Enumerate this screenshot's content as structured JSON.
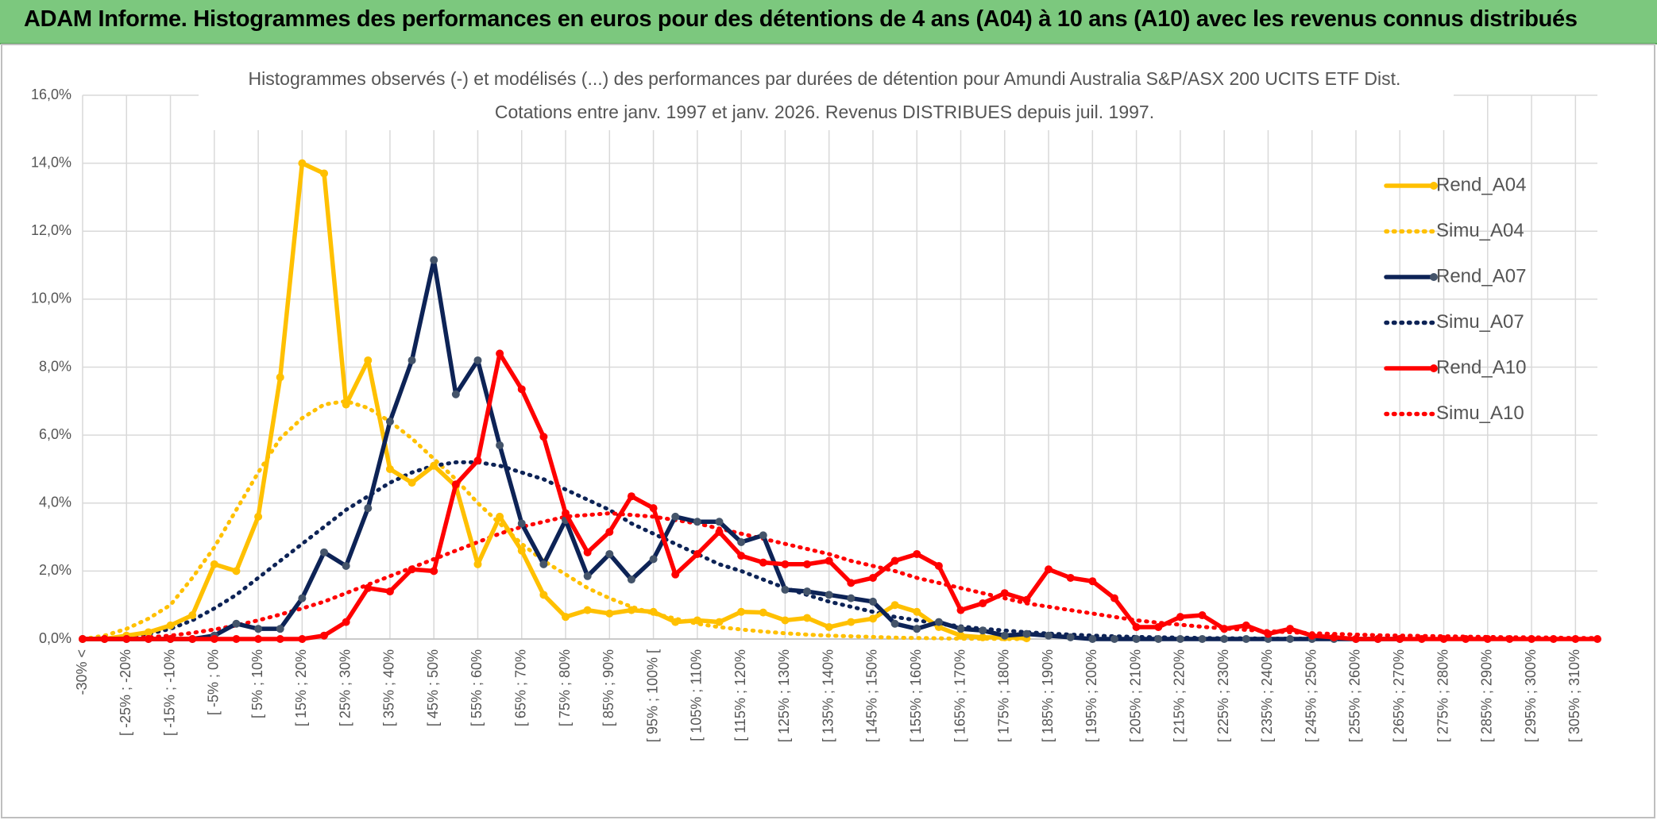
{
  "header": "ADAM Informe. Histogrammes des performances en euros pour des détentions de 4 ans (A04) à 10 ans (A10) avec les revenus connus distribués",
  "chart_data": {
    "type": "line",
    "title": "Histogrammes observés (-) et modélisés (...) des performances par durées de détention pour Amundi Australia S&P/ASX 200 UCITS ETF Dist.",
    "subtitle": "Cotations entre janv. 1997 et janv. 2026. Revenus DISTRIBUES depuis juil. 1997.",
    "categories": [
      "-30% <",
      null,
      "[ -25% ; -20%",
      null,
      "[ -15% ; -10%",
      null,
      "[ -5% ; 0%",
      null,
      "[ 5% ; 10%",
      null,
      "[ 15% ; 20%",
      null,
      "[ 25% ; 30%",
      null,
      "[ 35% ; 40%",
      null,
      "[ 45% ; 50%",
      null,
      "[ 55% ; 60%",
      null,
      "[ 65% ; 70%",
      null,
      "[ 75% ; 80%",
      null,
      "[ 85% ; 90%",
      null,
      "[ 95% ; 100% [",
      null,
      "[ 105% ; 110%",
      null,
      "[ 115% ; 120%",
      null,
      "[ 125% ; 130%",
      null,
      "[ 135% ; 140%",
      null,
      "[ 145% ; 150%",
      null,
      "[ 155% ; 160%",
      null,
      "[ 165% ; 170%",
      null,
      "[ 175% ; 180%",
      null,
      "[ 185% ; 190%",
      null,
      "[ 195% ; 200%",
      null,
      "[ 205% ; 210%",
      null,
      "[ 215% ; 220%",
      null,
      "[ 225% ; 230%",
      null,
      "[ 235% ; 240%",
      null,
      "[ 245% ; 250%",
      null,
      "[ 255% ; 260%",
      null,
      "[ 265% ; 270%",
      null,
      "[ 275% ; 280%",
      null,
      "[ 285% ; 290%",
      null,
      "[ 295% ; 300%",
      null,
      "[ 305% ; 310%",
      null
    ],
    "series": [
      {
        "name": "Rend_A04",
        "color": "#FFC000",
        "dash": "solid",
        "markers": true,
        "marker_color": "#FFC000",
        "values": [
          0,
          0,
          0.1,
          0.2,
          0.4,
          0.7,
          2.2,
          2.0,
          3.6,
          7.7,
          14.0,
          13.7,
          6.9,
          8.2,
          5.0,
          4.6,
          5.1,
          4.5,
          2.2,
          3.6,
          2.6,
          1.3,
          0.65,
          0.85,
          0.75,
          0.85,
          0.8,
          0.5,
          0.55,
          0.5,
          0.8,
          0.78,
          0.55,
          0.62,
          0.35,
          0.5,
          0.6,
          1.0,
          0.8,
          0.35,
          0.1,
          0.05,
          0.05,
          0.02,
          null,
          null,
          null,
          null,
          null,
          null,
          null,
          null,
          null,
          null,
          null,
          null,
          null,
          null,
          null,
          null,
          null,
          null,
          null,
          null,
          null,
          null,
          null,
          null,
          null,
          null
        ]
      },
      {
        "name": "Simu_A04",
        "color": "#FFC000",
        "dash": "dotted",
        "markers": false,
        "values": [
          0,
          0.1,
          0.3,
          0.6,
          1.0,
          1.8,
          2.7,
          3.8,
          4.9,
          5.9,
          6.5,
          6.9,
          7.0,
          6.8,
          6.4,
          5.9,
          5.3,
          4.7,
          4.0,
          3.4,
          2.8,
          2.3,
          1.9,
          1.5,
          1.2,
          0.95,
          0.75,
          0.6,
          0.45,
          0.35,
          0.28,
          0.22,
          0.17,
          0.13,
          0.1,
          0.08,
          0.06,
          0.04,
          0.03,
          0.02,
          0.01,
          0.01,
          0,
          0,
          null,
          null,
          null,
          null,
          null,
          null,
          null,
          null,
          null,
          null,
          null,
          null,
          null,
          null,
          null,
          null,
          null,
          null,
          null,
          null,
          null,
          null,
          null,
          null,
          null,
          null
        ]
      },
      {
        "name": "Rend_A07",
        "color": "#0D2356",
        "dash": "solid",
        "markers": true,
        "marker_color": "#44546A",
        "values": [
          0,
          0,
          0,
          0,
          0,
          0,
          0.1,
          0.45,
          0.3,
          0.3,
          1.2,
          2.55,
          2.15,
          3.85,
          6.4,
          8.2,
          11.15,
          7.2,
          8.2,
          5.7,
          3.4,
          2.2,
          3.5,
          1.85,
          2.5,
          1.75,
          2.35,
          3.6,
          3.45,
          3.45,
          2.85,
          3.05,
          1.45,
          1.4,
          1.3,
          1.2,
          1.1,
          0.45,
          0.3,
          0.5,
          0.3,
          0.25,
          0.1,
          0.15,
          0.1,
          0.05,
          0,
          0,
          0,
          0,
          0,
          0,
          0,
          0,
          0,
          0,
          0,
          0,
          0,
          0,
          0,
          null,
          null,
          null,
          null,
          null,
          null,
          null,
          null,
          null
        ]
      },
      {
        "name": "Simu_A07",
        "color": "#0D2356",
        "dash": "dotted",
        "markers": false,
        "values": [
          0,
          0.02,
          0.05,
          0.15,
          0.3,
          0.55,
          0.9,
          1.3,
          1.8,
          2.3,
          2.8,
          3.3,
          3.8,
          4.2,
          4.6,
          4.9,
          5.1,
          5.2,
          5.2,
          5.1,
          4.9,
          4.7,
          4.4,
          4.1,
          3.8,
          3.4,
          3.1,
          2.8,
          2.5,
          2.2,
          2.0,
          1.75,
          1.5,
          1.3,
          1.1,
          0.95,
          0.8,
          0.65,
          0.55,
          0.45,
          0.37,
          0.3,
          0.25,
          0.2,
          0.16,
          0.13,
          0.1,
          0.08,
          0.06,
          0.05,
          0.04,
          0.03,
          0.02,
          0.02,
          0.01,
          0.01,
          0.01,
          0.01,
          0,
          0,
          0,
          null,
          null,
          null,
          null,
          null,
          null,
          null,
          null,
          null
        ]
      },
      {
        "name": "Rend_A10",
        "color": "#FF0000",
        "dash": "solid",
        "markers": true,
        "marker_color": "#FF0000",
        "values": [
          0,
          0,
          0,
          0,
          0,
          0,
          0,
          0,
          0,
          0,
          0,
          0.1,
          0.5,
          1.5,
          1.4,
          2.05,
          2.0,
          4.55,
          5.25,
          8.4,
          7.35,
          5.95,
          3.7,
          2.55,
          3.15,
          4.2,
          3.85,
          1.9,
          2.5,
          3.15,
          2.45,
          2.25,
          2.2,
          2.2,
          2.3,
          1.65,
          1.8,
          2.3,
          2.5,
          2.15,
          0.85,
          1.05,
          1.35,
          1.15,
          2.05,
          1.8,
          1.7,
          1.2,
          0.35,
          0.35,
          0.65,
          0.7,
          0.3,
          0.4,
          0.15,
          0.3,
          0.1,
          0.05,
          0,
          0,
          0,
          0,
          0,
          0,
          0,
          0,
          0,
          0,
          0,
          0
        ]
      },
      {
        "name": "Simu_A10",
        "color": "#FF0000",
        "dash": "dotted",
        "markers": false,
        "values": [
          0,
          0,
          0.02,
          0.05,
          0.1,
          0.18,
          0.28,
          0.4,
          0.55,
          0.72,
          0.9,
          1.1,
          1.35,
          1.6,
          1.85,
          2.1,
          2.35,
          2.6,
          2.85,
          3.1,
          3.3,
          3.45,
          3.6,
          3.65,
          3.7,
          3.65,
          3.6,
          3.5,
          3.4,
          3.25,
          3.1,
          2.95,
          2.8,
          2.65,
          2.5,
          2.3,
          2.15,
          2.0,
          1.8,
          1.65,
          1.5,
          1.35,
          1.2,
          1.05,
          0.95,
          0.85,
          0.75,
          0.65,
          0.55,
          0.48,
          0.42,
          0.36,
          0.31,
          0.27,
          0.23,
          0.2,
          0.17,
          0.15,
          0.13,
          0.11,
          0.1,
          0.09,
          0.08,
          0.07,
          0.06,
          0.05,
          0.05,
          0.04,
          0.03,
          0.03
        ]
      }
    ],
    "ylim": [
      0,
      16
    ],
    "yticks": [
      {
        "value": 0,
        "label": "0,0%"
      },
      {
        "value": 2,
        "label": "2,0%"
      },
      {
        "value": 4,
        "label": "4,0%"
      },
      {
        "value": 6,
        "label": "6,0%"
      },
      {
        "value": 8,
        "label": "8,0%"
      },
      {
        "value": 10,
        "label": "10,0%"
      },
      {
        "value": 12,
        "label": "12,0%"
      },
      {
        "value": 14,
        "label": "14,0%"
      },
      {
        "value": 16,
        "label": "16,0%"
      }
    ],
    "grid": true,
    "legend": "right"
  }
}
